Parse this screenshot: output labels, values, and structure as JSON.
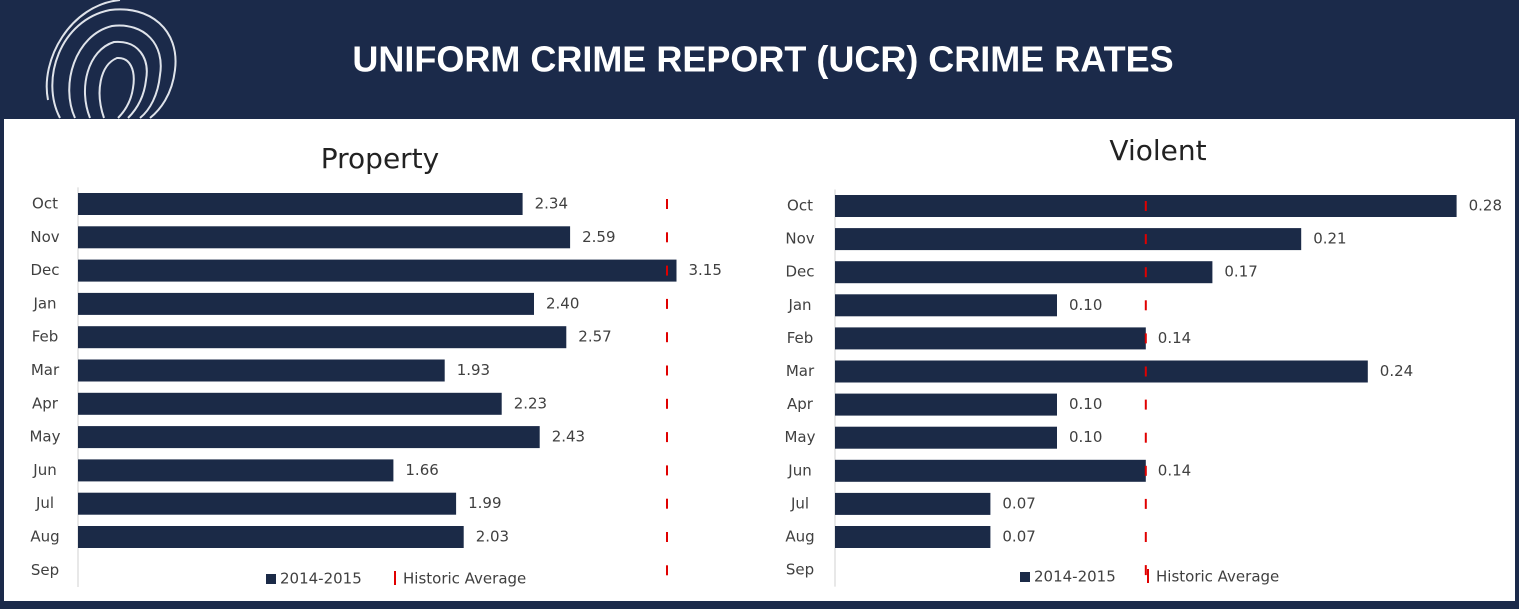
{
  "header": {
    "title": "UNIFORM CRIME REPORT (UCR) CRIME RATES"
  },
  "chart_data": [
    {
      "type": "bar",
      "orientation": "horizontal",
      "title": "Property",
      "categories": [
        "Oct",
        "Nov",
        "Dec",
        "Jan",
        "Feb",
        "Mar",
        "Apr",
        "May",
        "Jun",
        "Jul",
        "Aug",
        "Sep"
      ],
      "xlim": [
        0,
        3.3
      ],
      "series": [
        {
          "name": "2014-2015",
          "color": "#1b2a47",
          "marker": "bar",
          "values": [
            2.34,
            2.59,
            3.15,
            2.4,
            2.57,
            1.93,
            2.23,
            2.43,
            1.66,
            1.99,
            2.03,
            null
          ],
          "value_labels": [
            "2.34",
            "2.59",
            "3.15",
            "2.40",
            "2.57",
            "1.93",
            "2.23",
            "2.43",
            "1.66",
            "1.99",
            "2.03",
            null
          ]
        },
        {
          "name": "Historic Average",
          "color": "#e00000",
          "marker": "tick",
          "values": [
            3.1,
            3.1,
            3.1,
            3.1,
            3.1,
            3.1,
            3.1,
            3.1,
            3.1,
            3.1,
            3.1,
            3.1
          ]
        }
      ]
    },
    {
      "type": "bar",
      "orientation": "horizontal",
      "title": "Violent",
      "categories": [
        "Oct",
        "Nov",
        "Dec",
        "Jan",
        "Feb",
        "Mar",
        "Apr",
        "May",
        "Jun",
        "Jul",
        "Aug",
        "Sep"
      ],
      "xlim": [
        0,
        0.3
      ],
      "series": [
        {
          "name": "2014-2015",
          "color": "#1b2a47",
          "marker": "bar",
          "values": [
            0.28,
            0.21,
            0.17,
            0.1,
            0.14,
            0.24,
            0.1,
            0.1,
            0.14,
            0.07,
            0.07,
            null
          ],
          "value_labels": [
            "0.28",
            "0.21",
            "0.17",
            "0.10",
            "0.14",
            "0.24",
            "0.10",
            "0.10",
            "0.14",
            "0.07",
            "0.07",
            null
          ]
        },
        {
          "name": "Historic Average",
          "color": "#e00000",
          "marker": "tick",
          "values": [
            0.14,
            0.14,
            0.14,
            0.14,
            0.14,
            0.14,
            0.14,
            0.14,
            0.14,
            0.14,
            0.14,
            0.14
          ]
        }
      ]
    }
  ]
}
